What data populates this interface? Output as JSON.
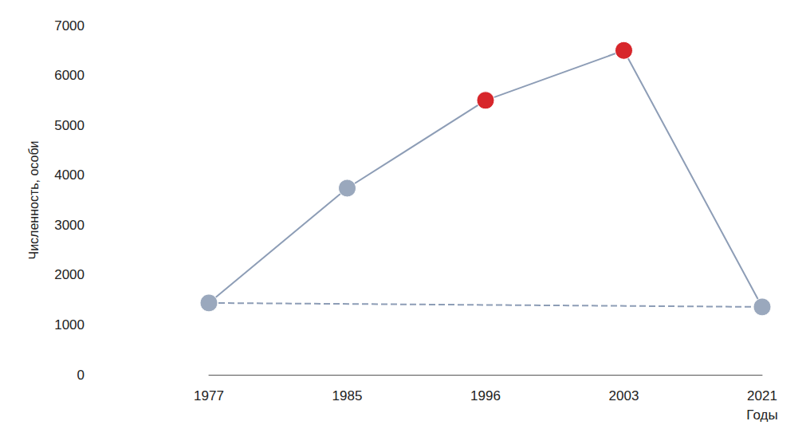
{
  "chart_data": {
    "type": "line",
    "y_label": "Численность, особи",
    "x_label": "Годы",
    "categories": [
      "1977",
      "1985",
      "1996",
      "2003",
      "2021"
    ],
    "series": [
      {
        "color": "#8d9db6",
        "colors": [
          "#9aa8bd",
          "#9aa8bd",
          "#d7262b",
          "#d7262b",
          "#9aa8bd"
        ],
        "marker": "circle",
        "line_style": "solid",
        "values": [
          1440,
          3740,
          5500,
          6500,
          1360
        ]
      },
      {
        "color": "#8d9db6",
        "marker": "none",
        "line_style": "dashed",
        "values": [
          1440,
          null,
          null,
          null,
          1360
        ]
      }
    ],
    "ylim": [
      0,
      7000
    ],
    "yticks": [
      0,
      1000,
      2000,
      3000,
      4000,
      5000,
      6000,
      7000
    ],
    "grid": false
  }
}
